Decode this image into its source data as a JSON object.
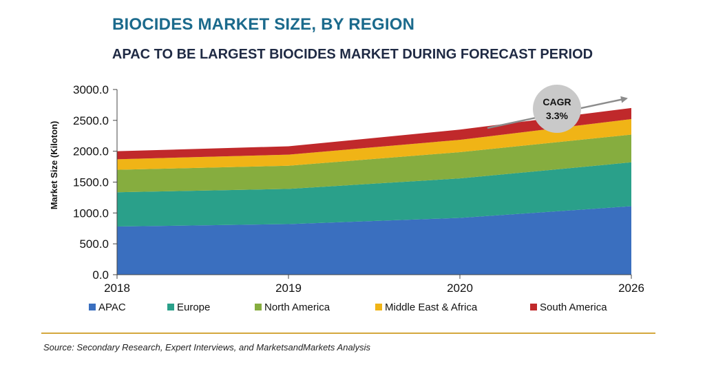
{
  "header": {
    "title": "BIOCIDES MARKET SIZE, BY REGION",
    "subtitle": "APAC TO BE LARGEST BIOCIDES MARKET DURING FORECAST PERIOD"
  },
  "chart_data": {
    "type": "area",
    "stacked": true,
    "categories": [
      "2018",
      "2019",
      "2020",
      "2026"
    ],
    "ylabel": "Market Size (Kiloton)",
    "xlabel": "",
    "ylim": [
      0,
      3000
    ],
    "yticks": [
      "0.0",
      "500.0",
      "1000.0",
      "1500.0",
      "2000.0",
      "2500.0",
      "3000.0"
    ],
    "grid": false,
    "legend_position": "bottom",
    "series": [
      {
        "name": "APAC",
        "values": [
          780,
          820,
          920,
          1110
        ],
        "color": "#3a6fbf"
      },
      {
        "name": "Europe",
        "values": [
          555,
          570,
          640,
          710
        ],
        "color": "#2aa08a"
      },
      {
        "name": "North America",
        "values": [
          365,
          375,
          425,
          450
        ],
        "color": "#86ad3f"
      },
      {
        "name": "Middle East & Africa",
        "values": [
          170,
          180,
          200,
          250
        ],
        "color": "#f0b416"
      },
      {
        "name": "South America",
        "values": [
          130,
          135,
          165,
          180
        ],
        "color": "#c0292b"
      }
    ],
    "annotation": {
      "label_line1": "CAGR",
      "label_line2": "3.3%"
    }
  },
  "footer": {
    "source": "Source: Secondary Research, Expert Interviews, and MarketsandMarkets Analysis"
  }
}
